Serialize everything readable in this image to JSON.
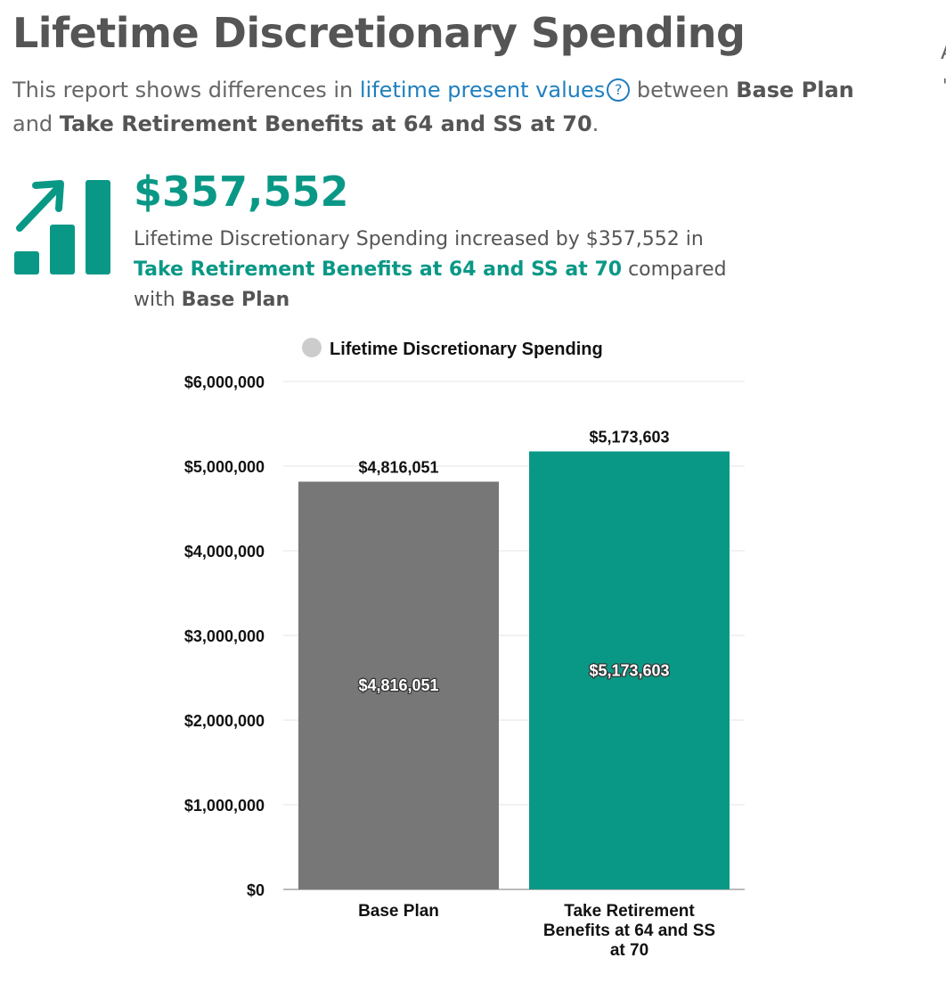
{
  "header": {
    "title": "Lifetime Discretionary Spending",
    "intro_prefix": "This report shows differences in ",
    "intro_link": "lifetime present values",
    "help_glyph": "?",
    "intro_between": " between ",
    "plan_a": "Base Plan",
    "intro_and": "and ",
    "plan_b": "Take Retirement Benefits at 64 and SS at 70",
    "intro_end": "."
  },
  "summary": {
    "icon": "trending-up-bars-icon",
    "delta_value": "$357,552",
    "text_prefix": "Lifetime Discretionary Spending increased by $357,552 in",
    "plan_b": "Take Retirement Benefits at 64 and SS at 70",
    "text_mid": " compared with ",
    "plan_a": "Base Plan"
  },
  "colors": {
    "teal": "#0a9886",
    "gray_bar": "#777777",
    "link_blue": "#1f7fbf",
    "legend_dot": "#cccccc"
  },
  "chart_data": {
    "type": "bar",
    "legend": {
      "label": "Lifetime Discretionary Spending",
      "position": "top"
    },
    "categories": [
      "Base Plan",
      "Take Retirement Benefits at 64 and SS at 70"
    ],
    "values": [
      4816051,
      5173603
    ],
    "value_labels": [
      "$4,816,051",
      "$5,173,603"
    ],
    "bar_colors": [
      "#777777",
      "#0a9886"
    ],
    "y_ticks": [
      0,
      1000000,
      2000000,
      3000000,
      4000000,
      5000000,
      6000000
    ],
    "y_tick_labels": [
      "$0",
      "$1,000,000",
      "$2,000,000",
      "$3,000,000",
      "$4,000,000",
      "$5,000,000",
      "$6,000,000"
    ],
    "ylim": [
      0,
      6000000
    ],
    "grid": true
  },
  "edge_glyphs": [
    "A",
    "'"
  ]
}
